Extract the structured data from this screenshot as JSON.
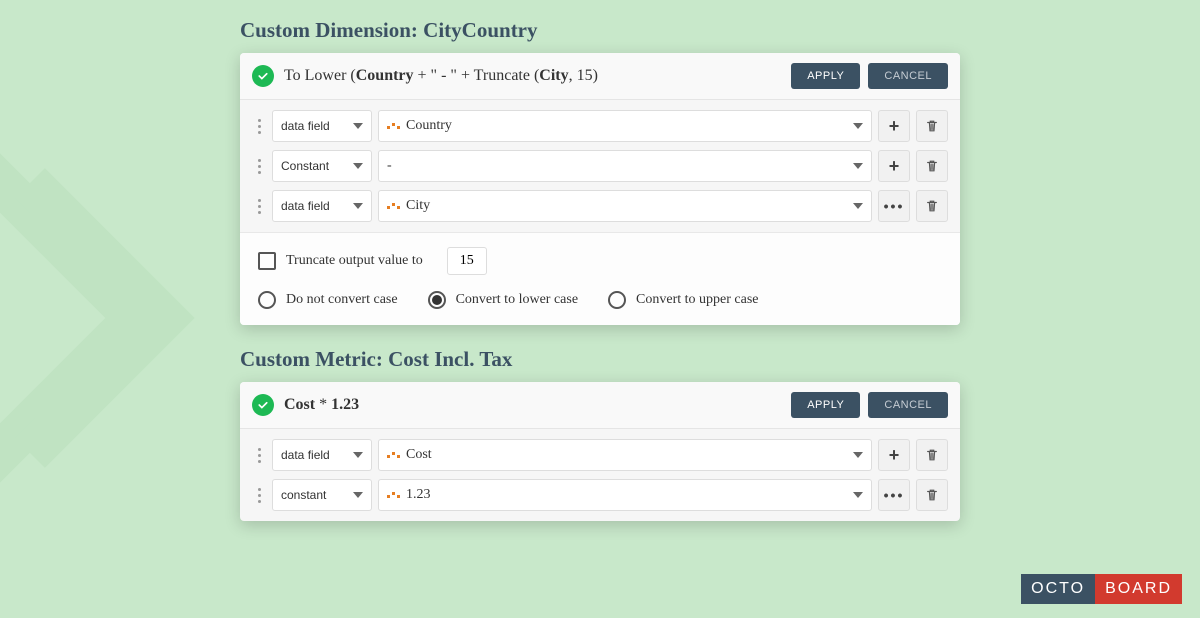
{
  "colors": {
    "page_bg": "#c8e8ca",
    "card_bg": "#f6f6f6",
    "header_text": "#3b5163",
    "btn_bg": "#3b5163",
    "check_green": "#1db954",
    "accent_orange": "#e67e22",
    "logo_red": "#d23a2e"
  },
  "section1": {
    "title": "Custom Dimension: CityCountry",
    "expression_prefix": "To Lower (",
    "expression_b1": "Country",
    "expression_mid1": " + \" - \" + Truncate (",
    "expression_b2": "City",
    "expression_suffix": ", 15)",
    "apply": "APPLY",
    "cancel": "CANCEL",
    "rows": [
      {
        "type": "data field",
        "value": "Country",
        "showIcon": true,
        "action": "plus"
      },
      {
        "type": "Constant",
        "value": "-",
        "showIcon": false,
        "action": "plus"
      },
      {
        "type": "data field",
        "value": "City",
        "showIcon": true,
        "action": "more"
      }
    ],
    "truncate_label": "Truncate output value to",
    "truncate_value": "15",
    "radios": {
      "opt1": "Do not convert case",
      "opt2": "Convert to lower case",
      "opt3": "Convert to upper case",
      "selected": 1
    }
  },
  "section2": {
    "title": "Custom Metric: Cost Incl. Tax",
    "expression_b1": "Cost",
    "expression_mid1": " * ",
    "expression_b2": "1.23",
    "apply": "APPLY",
    "cancel": "CANCEL",
    "rows": [
      {
        "type": "data field",
        "value": "Cost",
        "showIcon": true,
        "action": "plus"
      },
      {
        "type": "constant",
        "value": "1.23",
        "showIcon": true,
        "action": "more"
      }
    ]
  },
  "logo": {
    "p1": "OCTO",
    "p2": "BOARD"
  }
}
